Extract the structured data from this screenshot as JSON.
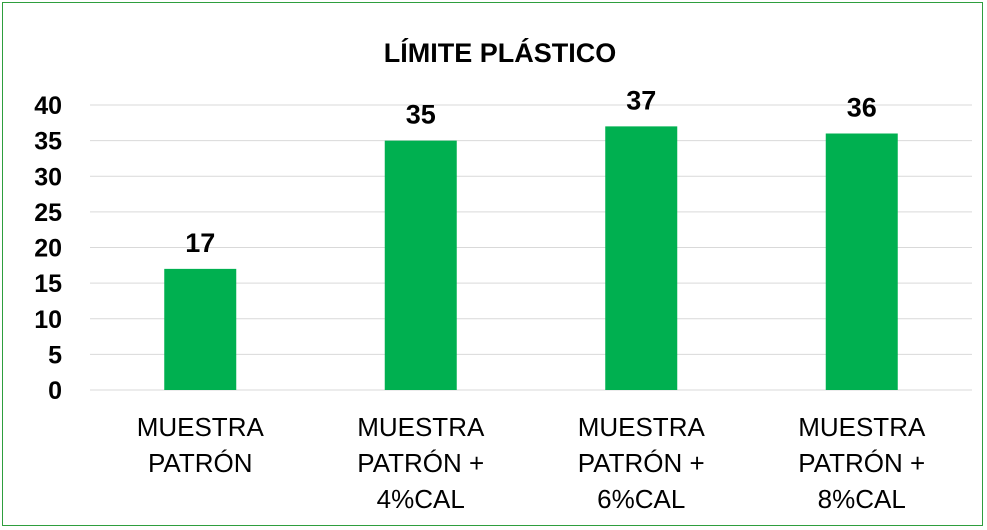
{
  "chart_data": {
    "type": "bar",
    "title": "LÍMITE PLÁSTICO",
    "categories": [
      [
        "MUESTRA",
        "PATRÓN"
      ],
      [
        "MUESTRA",
        "PATRÓN +",
        "4%CAL"
      ],
      [
        "MUESTRA",
        "PATRÓN +",
        "6%CAL"
      ],
      [
        "MUESTRA",
        "PATRÓN +",
        "8%CAL"
      ]
    ],
    "values": [
      17,
      35,
      37,
      36
    ],
    "data_labels": [
      "17",
      "35",
      "37",
      "36"
    ],
    "ylim": [
      0,
      40
    ],
    "yticks": [
      0,
      5,
      10,
      15,
      20,
      25,
      30,
      35,
      40
    ],
    "xlabel": "",
    "ylabel": "",
    "grid": true,
    "bar_color": "#00b050",
    "grid_color": "#d9d9d9",
    "border_color": "#2e9e3e"
  }
}
